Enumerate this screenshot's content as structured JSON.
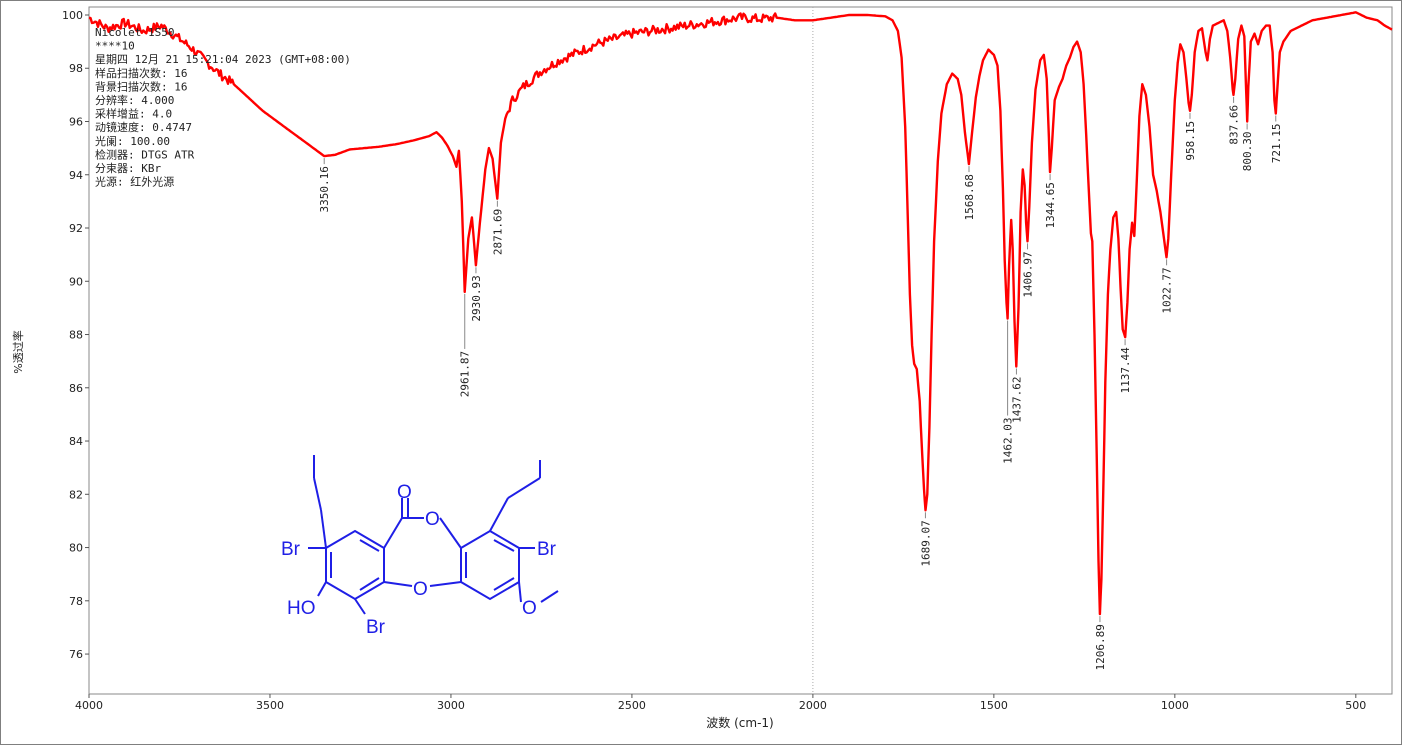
{
  "chart_data": {
    "type": "line",
    "xlabel": "波数 (cm-1)",
    "ylabel": "%透过率",
    "xlim": [
      4000,
      400
    ],
    "ylim": [
      74.5,
      100.3
    ],
    "x_ticks": [
      4000,
      3500,
      3000,
      2500,
      2000,
      1500,
      1000,
      500
    ],
    "y_ticks": [
      76,
      78,
      80,
      82,
      84,
      86,
      88,
      90,
      92,
      94,
      96,
      98,
      100
    ],
    "line_color": "#ff0000",
    "grid": false,
    "reference_line_x": 2000,
    "info_lines": [
      "Nicolet 1S50",
      "****10",
      "星期四 12月 21 15:21:04 2023 (GMT+08:00)",
      "样品扫描次数: 16",
      "背景扫描次数: 16",
      "分辨率:  4.000",
      "采样增益:  4.0",
      "动镜速度:  0.4747",
      "光阑:  100.00",
      "检测器:  DTGS ATR",
      "分束器:  KBr",
      "光源:  红外光源"
    ],
    "peaks": [
      {
        "label": "3350.16",
        "x": 3350.16,
        "y": 94.7
      },
      {
        "label": "2961.87",
        "x": 2961.87,
        "y": 89.6
      },
      {
        "label": "2930.93",
        "x": 2930.93,
        "y": 90.6
      },
      {
        "label": "2871.69",
        "x": 2871.69,
        "y": 93.1
      },
      {
        "label": "1689.07",
        "x": 1689.07,
        "y": 81.4
      },
      {
        "label": "1568.68",
        "x": 1568.68,
        "y": 94.4
      },
      {
        "label": "1462.03",
        "x": 1462.03,
        "y": 88.6
      },
      {
        "label": "1437.62",
        "x": 1437.62,
        "y": 86.8
      },
      {
        "label": "1406.97",
        "x": 1406.97,
        "y": 91.5
      },
      {
        "label": "1344.65",
        "x": 1344.65,
        "y": 94.1
      },
      {
        "label": "1206.89",
        "x": 1206.89,
        "y": 77.5
      },
      {
        "label": "1137.44",
        "x": 1137.44,
        "y": 87.9
      },
      {
        "label": "1022.77",
        "x": 1022.77,
        "y": 90.9
      },
      {
        "label": "958.15",
        "x": 958.15,
        "y": 96.4
      },
      {
        "label": "837.66",
        "x": 837.66,
        "y": 97.0
      },
      {
        "label": "800.30",
        "x": 800.3,
        "y": 96.0
      },
      {
        "label": "721.15",
        "x": 721.15,
        "y": 96.3
      }
    ],
    "spectrum": [
      [
        4000,
        99.9
      ],
      [
        3950,
        99.5
      ],
      [
        3900,
        99.7
      ],
      [
        3850,
        99.4
      ],
      [
        3800,
        99.6
      ],
      [
        3760,
        99.2
      ],
      [
        3720,
        98.8
      ],
      [
        3680,
        98.3
      ],
      [
        3640,
        97.8
      ],
      [
        3600,
        97.4
      ],
      [
        3560,
        96.9
      ],
      [
        3520,
        96.4
      ],
      [
        3480,
        96.0
      ],
      [
        3440,
        95.6
      ],
      [
        3400,
        95.2
      ],
      [
        3370,
        94.9
      ],
      [
        3350,
        94.7
      ],
      [
        3320,
        94.75
      ],
      [
        3280,
        94.95
      ],
      [
        3240,
        95.0
      ],
      [
        3200,
        95.05
      ],
      [
        3150,
        95.15
      ],
      [
        3100,
        95.3
      ],
      [
        3060,
        95.45
      ],
      [
        3040,
        95.6
      ],
      [
        3025,
        95.4
      ],
      [
        3010,
        95.1
      ],
      [
        2995,
        94.7
      ],
      [
        2985,
        94.3
      ],
      [
        2978,
        94.9
      ],
      [
        2970,
        93.0
      ],
      [
        2962,
        89.6
      ],
      [
        2952,
        91.6
      ],
      [
        2942,
        92.4
      ],
      [
        2931,
        90.6
      ],
      [
        2920,
        92.2
      ],
      [
        2905,
        94.2
      ],
      [
        2895,
        95.0
      ],
      [
        2885,
        94.6
      ],
      [
        2872,
        93.1
      ],
      [
        2862,
        95.2
      ],
      [
        2850,
        96.1
      ],
      [
        2830,
        96.8
      ],
      [
        2800,
        97.3
      ],
      [
        2750,
        97.9
      ],
      [
        2700,
        98.3
      ],
      [
        2650,
        98.6
      ],
      [
        2600,
        98.9
      ],
      [
        2550,
        99.1
      ],
      [
        2500,
        99.3
      ],
      [
        2450,
        99.4
      ],
      [
        2400,
        99.5
      ],
      [
        2350,
        99.6
      ],
      [
        2300,
        99.7
      ],
      [
        2250,
        99.8
      ],
      [
        2200,
        99.9
      ],
      [
        2150,
        99.85
      ],
      [
        2100,
        99.9
      ],
      [
        2050,
        99.8
      ],
      [
        2000,
        99.8
      ],
      [
        1950,
        99.9
      ],
      [
        1900,
        100.0
      ],
      [
        1850,
        100.0
      ],
      [
        1800,
        99.95
      ],
      [
        1780,
        99.8
      ],
      [
        1765,
        99.4
      ],
      [
        1755,
        98.4
      ],
      [
        1745,
        95.8
      ],
      [
        1738,
        92.5
      ],
      [
        1732,
        89.5
      ],
      [
        1726,
        87.6
      ],
      [
        1720,
        86.9
      ],
      [
        1713,
        86.7
      ],
      [
        1705,
        85.5
      ],
      [
        1698,
        83.5
      ],
      [
        1693,
        82.2
      ],
      [
        1689,
        81.4
      ],
      [
        1684,
        82.0
      ],
      [
        1678,
        84.5
      ],
      [
        1672,
        88.0
      ],
      [
        1665,
        91.5
      ],
      [
        1655,
        94.5
      ],
      [
        1645,
        96.3
      ],
      [
        1630,
        97.4
      ],
      [
        1615,
        97.8
      ],
      [
        1600,
        97.6
      ],
      [
        1590,
        97.0
      ],
      [
        1580,
        95.6
      ],
      [
        1569,
        94.4
      ],
      [
        1560,
        95.6
      ],
      [
        1550,
        96.9
      ],
      [
        1540,
        97.7
      ],
      [
        1530,
        98.3
      ],
      [
        1515,
        98.7
      ],
      [
        1500,
        98.5
      ],
      [
        1490,
        98.1
      ],
      [
        1482,
        96.4
      ],
      [
        1475,
        93.5
      ],
      [
        1470,
        90.8
      ],
      [
        1465,
        89.2
      ],
      [
        1462,
        88.6
      ],
      [
        1458,
        90.6
      ],
      [
        1452,
        92.3
      ],
      [
        1448,
        91.2
      ],
      [
        1443,
        88.5
      ],
      [
        1438,
        86.8
      ],
      [
        1432,
        89.0
      ],
      [
        1426,
        92.6
      ],
      [
        1420,
        94.2
      ],
      [
        1415,
        93.6
      ],
      [
        1411,
        92.2
      ],
      [
        1407,
        91.5
      ],
      [
        1402,
        92.8
      ],
      [
        1395,
        95.2
      ],
      [
        1385,
        97.2
      ],
      [
        1372,
        98.3
      ],
      [
        1362,
        98.5
      ],
      [
        1354,
        97.6
      ],
      [
        1348,
        95.4
      ],
      [
        1345,
        94.1
      ],
      [
        1340,
        95.0
      ],
      [
        1332,
        96.8
      ],
      [
        1320,
        97.3
      ],
      [
        1310,
        97.6
      ],
      [
        1300,
        98.1
      ],
      [
        1290,
        98.4
      ],
      [
        1280,
        98.8
      ],
      [
        1270,
        99.0
      ],
      [
        1260,
        98.6
      ],
      [
        1252,
        97.4
      ],
      [
        1245,
        95.5
      ],
      [
        1238,
        93.5
      ],
      [
        1232,
        91.8
      ],
      [
        1228,
        91.5
      ],
      [
        1222,
        88.0
      ],
      [
        1216,
        83.5
      ],
      [
        1211,
        79.5
      ],
      [
        1207,
        77.5
      ],
      [
        1203,
        78.8
      ],
      [
        1198,
        82.0
      ],
      [
        1192,
        86.2
      ],
      [
        1185,
        89.5
      ],
      [
        1178,
        91.2
      ],
      [
        1170,
        92.4
      ],
      [
        1162,
        92.6
      ],
      [
        1156,
        91.6
      ],
      [
        1150,
        89.8
      ],
      [
        1144,
        88.2
      ],
      [
        1137,
        87.9
      ],
      [
        1131,
        89.2
      ],
      [
        1125,
        91.2
      ],
      [
        1118,
        92.2
      ],
      [
        1112,
        91.7
      ],
      [
        1105,
        93.8
      ],
      [
        1098,
        96.2
      ],
      [
        1090,
        97.4
      ],
      [
        1080,
        97.0
      ],
      [
        1070,
        95.8
      ],
      [
        1060,
        94.0
      ],
      [
        1050,
        93.4
      ],
      [
        1040,
        92.6
      ],
      [
        1030,
        91.6
      ],
      [
        1023,
        90.9
      ],
      [
        1018,
        91.6
      ],
      [
        1010,
        94.0
      ],
      [
        1000,
        96.8
      ],
      [
        992,
        98.2
      ],
      [
        985,
        98.9
      ],
      [
        976,
        98.6
      ],
      [
        968,
        97.6
      ],
      [
        962,
        96.7
      ],
      [
        958,
        96.4
      ],
      [
        953,
        97.0
      ],
      [
        945,
        98.6
      ],
      [
        935,
        99.4
      ],
      [
        925,
        99.5
      ],
      [
        915,
        98.6
      ],
      [
        910,
        98.3
      ],
      [
        903,
        99.1
      ],
      [
        895,
        99.6
      ],
      [
        880,
        99.7
      ],
      [
        865,
        99.8
      ],
      [
        855,
        99.4
      ],
      [
        847,
        98.4
      ],
      [
        840,
        97.2
      ],
      [
        838,
        97.0
      ],
      [
        833,
        97.6
      ],
      [
        825,
        99.1
      ],
      [
        816,
        99.6
      ],
      [
        808,
        99.2
      ],
      [
        803,
        97.2
      ],
      [
        800,
        96.0
      ],
      [
        797,
        97.3
      ],
      [
        790,
        99.0
      ],
      [
        780,
        99.3
      ],
      [
        770,
        98.9
      ],
      [
        760,
        99.4
      ],
      [
        748,
        99.6
      ],
      [
        738,
        99.6
      ],
      [
        730,
        98.6
      ],
      [
        725,
        96.8
      ],
      [
        721,
        96.3
      ],
      [
        717,
        97.2
      ],
      [
        710,
        98.6
      ],
      [
        700,
        99.0
      ],
      [
        680,
        99.4
      ],
      [
        650,
        99.6
      ],
      [
        620,
        99.8
      ],
      [
        580,
        99.9
      ],
      [
        540,
        100.0
      ],
      [
        500,
        100.1
      ],
      [
        470,
        99.9
      ],
      [
        440,
        99.8
      ],
      [
        420,
        99.6
      ],
      [
        400,
        99.45
      ]
    ]
  },
  "molecule": {
    "labels": {
      "carbonyl_o": "O",
      "ester_o": "O",
      "ether_o": "O",
      "br_upper_left": "Br",
      "br_upper_right": "Br",
      "br_lower": "Br",
      "hydroxyl": "HO"
    },
    "color": "#1f1fe6"
  }
}
